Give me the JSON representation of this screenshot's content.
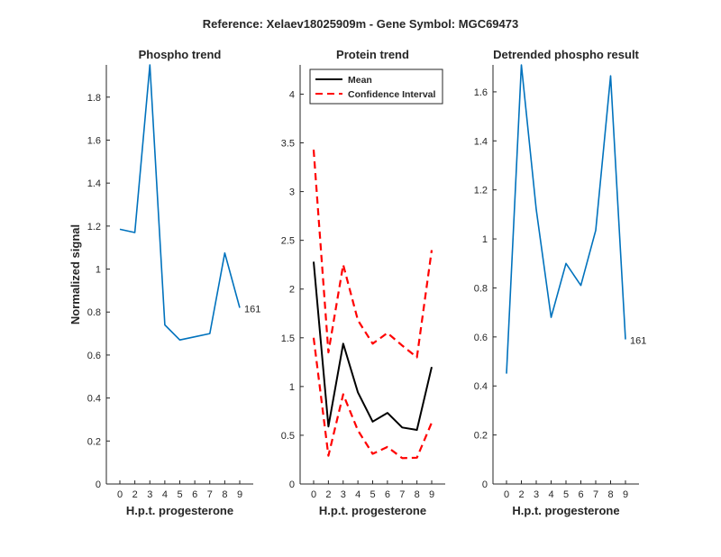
{
  "figure_title": "Reference:  Xelaev18025909m - Gene Symbol:  MGC69473",
  "colors": {
    "blue": "#0072BD",
    "black": "#000000",
    "red": "#FF0000",
    "axis": "#262626"
  },
  "chart_data": [
    {
      "type": "line",
      "title": "Phospho trend",
      "xlabel": "H.p.t. progesterone",
      "ylabel": "Normalized signal",
      "categories": [
        "0",
        "2",
        "3",
        "4",
        "5",
        "6",
        "7",
        "8",
        "9"
      ],
      "ylim": [
        0,
        1.95
      ],
      "yticks": [
        0,
        0.2,
        0.4,
        0.6,
        0.8,
        1,
        1.2,
        1.4,
        1.6,
        1.8
      ],
      "ytick_labels": [
        "0",
        "0.2",
        "0.4",
        "0.6",
        "0.8",
        "1",
        "1.2",
        "1.4",
        "1.6",
        "1.8"
      ],
      "series": [
        {
          "name": "Phospho",
          "color": "#0072BD",
          "style": "solid",
          "values": [
            1.185,
            1.17,
            1.95,
            0.74,
            0.67,
            0.685,
            0.7,
            1.075,
            0.82
          ]
        }
      ],
      "end_label": "161"
    },
    {
      "type": "line",
      "title": "Protein trend",
      "xlabel": "H.p.t. progesterone",
      "ylabel": "",
      "categories": [
        "0",
        "2",
        "3",
        "4",
        "5",
        "6",
        "7",
        "8",
        "9"
      ],
      "ylim": [
        0,
        4.3
      ],
      "yticks": [
        0,
        0.5,
        1,
        1.5,
        2,
        2.5,
        3,
        3.5,
        4
      ],
      "ytick_labels": [
        "0",
        "0.5",
        "1",
        "1.5",
        "2",
        "2.5",
        "3",
        "3.5",
        "4"
      ],
      "legend": {
        "placement": "top-left",
        "entries": [
          "Mean",
          "Confidence Interval"
        ]
      },
      "series": [
        {
          "name": "Mean",
          "color": "#000000",
          "style": "solid",
          "values": [
            2.28,
            0.59,
            1.44,
            0.94,
            0.64,
            0.73,
            0.58,
            0.555,
            1.2
          ]
        },
        {
          "name": "Confidence Interval",
          "color": "#FF0000",
          "style": "dashed",
          "values": [
            3.43,
            1.35,
            2.25,
            1.68,
            1.44,
            1.55,
            1.42,
            1.3,
            2.4
          ]
        },
        {
          "name": "Confidence Interval (lower)",
          "color": "#FF0000",
          "style": "dashed",
          "values": [
            1.5,
            0.29,
            0.92,
            0.55,
            0.31,
            0.38,
            0.265,
            0.27,
            0.63
          ]
        }
      ]
    },
    {
      "type": "line",
      "title": "Detrended phospho result",
      "xlabel": "H.p.t. progesterone",
      "ylabel": "",
      "categories": [
        "0",
        "2",
        "3",
        "4",
        "5",
        "6",
        "7",
        "8",
        "9"
      ],
      "ylim": [
        0,
        1.71
      ],
      "yticks": [
        0,
        0.2,
        0.4,
        0.6,
        0.8,
        1,
        1.2,
        1.4,
        1.6
      ],
      "ytick_labels": [
        "0",
        "0.2",
        "0.4",
        "0.6",
        "0.8",
        "1",
        "1.2",
        "1.4",
        "1.6"
      ],
      "series": [
        {
          "name": "Detrended",
          "color": "#0072BD",
          "style": "solid",
          "values": [
            0.45,
            1.71,
            1.12,
            0.68,
            0.9,
            0.81,
            1.035,
            1.665,
            0.59
          ]
        }
      ],
      "end_label": "161"
    }
  ]
}
